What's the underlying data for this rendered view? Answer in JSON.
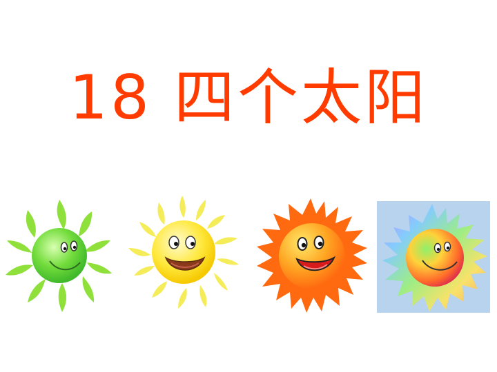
{
  "slide": {
    "title": "18 四个太阳"
  },
  "suns": [
    {
      "name": "green-sun",
      "colors": {
        "rays": "#8fe03a",
        "face": "#66d43a",
        "face_light": "#c6f59a"
      }
    },
    {
      "name": "yellow-sun",
      "colors": {
        "rays": "#f7e84a",
        "face": "#ffe23a",
        "face_light": "#fff9b0"
      }
    },
    {
      "name": "orange-sun",
      "colors": {
        "rays": "#ff6a10",
        "face": "#ff8a1c",
        "face_light": "#ffe06a"
      }
    },
    {
      "name": "rainbow-sun",
      "colors": {
        "background": "#b7d3ee",
        "face": "#ffb400"
      }
    }
  ]
}
